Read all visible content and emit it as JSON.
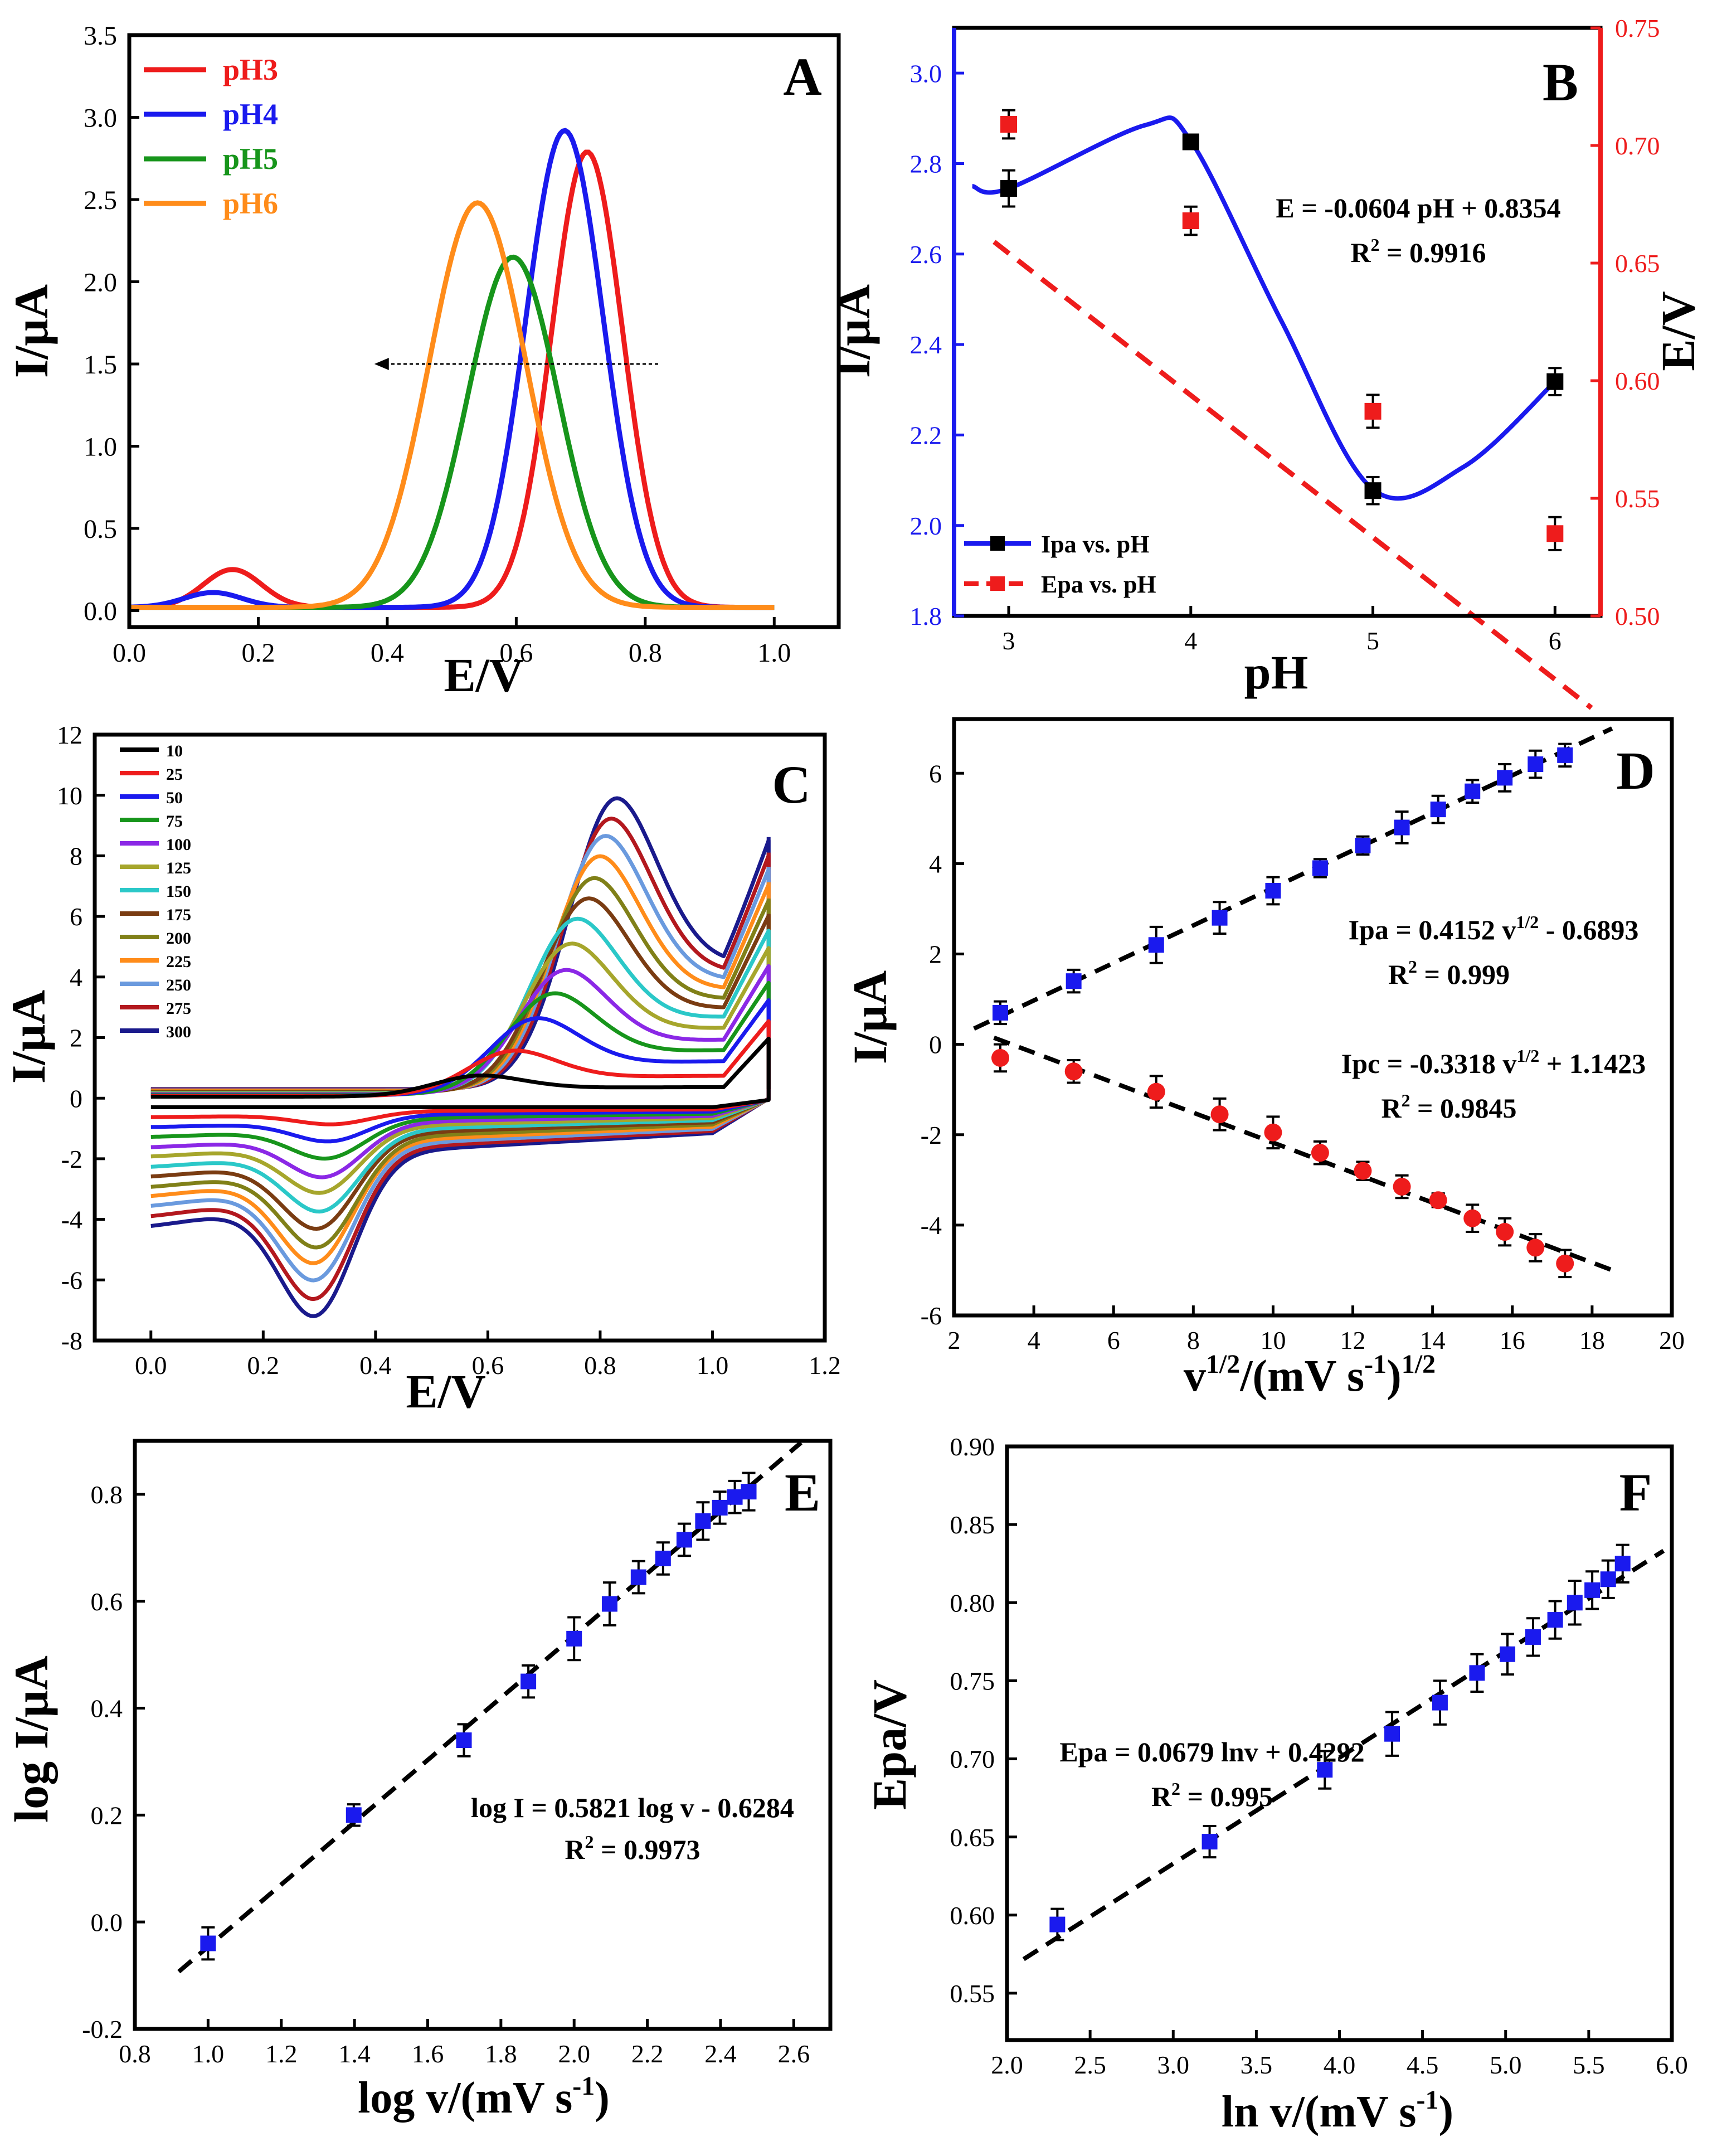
{
  "colors": {
    "red": "#ee1c1c",
    "blue": "#1a1aee",
    "green": "#17951b",
    "orange": "#ff8c1a",
    "black": "#000000",
    "cv": [
      "#000000",
      "#ee1c1c",
      "#1a1aee",
      "#17951b",
      "#8b28e6",
      "#a6a62c",
      "#2bc8c8",
      "#7a3c12",
      "#808018",
      "#ff8c1a",
      "#6a9ade",
      "#b3181e",
      "#1a1a8c"
    ]
  },
  "chart_data": [
    {
      "panel": "A",
      "type": "line",
      "xlabel": "E/V",
      "ylabel": "I/μA",
      "xlim": [
        0.0,
        1.1
      ],
      "ylim": [
        -0.1,
        3.5
      ],
      "xticks": [
        "0.0",
        "0.2",
        "0.4",
        "0.6",
        "0.8",
        "1.0"
      ],
      "yticks": [
        "0.0",
        "0.5",
        "1.0",
        "1.5",
        "2.0",
        "2.5",
        "3.0",
        "3.5"
      ],
      "legend": "top-left",
      "annotations": [
        "arrow pointing left at I≈1.5 µA, from E≈0.82 V to E≈0.38 V (peak shift with increasing pH)"
      ],
      "series": [
        {
          "name": "pH3",
          "peak_potential": 0.71,
          "peak_current": 2.77,
          "small_peak_potential": 0.16,
          "small_peak_current": 0.23
        },
        {
          "name": "pH4",
          "peak_potential": 0.675,
          "peak_current": 2.9,
          "small_peak_potential": 0.13,
          "small_peak_current": 0.09
        },
        {
          "name": "pH5",
          "peak_potential": 0.595,
          "peak_current": 2.13
        },
        {
          "name": "pH6",
          "peak_potential": 0.54,
          "peak_current": 2.46
        }
      ]
    },
    {
      "panel": "B",
      "type": "scatter",
      "xlabel": "pH",
      "ylabel_left": "I/μA",
      "ylabel_right": "E/V",
      "xlim": [
        2.7,
        6.25
      ],
      "ylim_left": [
        1.8,
        3.1
      ],
      "ylim_right": [
        0.5,
        0.75
      ],
      "xticks": [
        "3",
        "4",
        "5",
        "6"
      ],
      "yticks_left": [
        "1.8",
        "2.0",
        "2.2",
        "2.4",
        "2.6",
        "2.8",
        "3.0"
      ],
      "yticks_right": [
        "0.50",
        "0.55",
        "0.60",
        "0.65",
        "0.70",
        "0.75"
      ],
      "legend": "bottom-left",
      "equation": "E = -0.0604 pH + 0.8354",
      "r2_label": "R",
      "r2_value": " = 0.9916",
      "series": [
        {
          "name": "Ipa vs. pH",
          "x": [
            3,
            4,
            5,
            6
          ],
          "y": [
            2.745,
            2.848,
            2.077,
            2.318
          ],
          "error": [
            0.04,
            0.015,
            0.03,
            0.03
          ]
        },
        {
          "name": "Epa vs. pH",
          "x": [
            3,
            4,
            5,
            6
          ],
          "y": [
            0.709,
            0.668,
            0.587,
            0.535
          ],
          "error": [
            0.006,
            0.006,
            0.007,
            0.007
          ],
          "fit": {
            "slope": -0.0604,
            "intercept": 0.8354
          }
        }
      ]
    },
    {
      "panel": "C",
      "type": "line",
      "xlabel": "E/V",
      "ylabel": "I/μA",
      "xlim": [
        -0.1,
        1.2
      ],
      "ylim": [
        -8,
        12
      ],
      "xticks": [
        "0.0",
        "0.2",
        "0.4",
        "0.6",
        "0.8",
        "1.0",
        "1.2"
      ],
      "yticks": [
        "-8",
        "-6",
        "-4",
        "-2",
        "0",
        "2",
        "4",
        "6",
        "8",
        "10",
        "12"
      ],
      "legend": "top-left",
      "series_names": [
        "10",
        "25",
        "50",
        "75",
        "100",
        "125",
        "150",
        "175",
        "200",
        "225",
        "250",
        "275",
        "300"
      ],
      "anodic_peak_potential": [
        0.59,
        0.65,
        0.69,
        0.72,
        0.74,
        0.75,
        0.76,
        0.78,
        0.79,
        0.8,
        0.81,
        0.82,
        0.83
      ],
      "anodic_peak_current": [
        0.9,
        1.7,
        2.75,
        3.55,
        4.3,
        5.15,
        5.95,
        6.6,
        7.25,
        7.95,
        8.6,
        9.15,
        9.8
      ],
      "cathodic_peak_potential": [
        0.33,
        0.32,
        0.315,
        0.31,
        0.305,
        0.3,
        0.3,
        0.295,
        0.295,
        0.29,
        0.29,
        0.29,
        0.29
      ],
      "cathodic_peak_current": [
        -0.3,
        -0.8,
        -1.3,
        -1.8,
        -2.35,
        -2.8,
        -3.35,
        -3.85,
        -4.4,
        -4.85,
        -5.35,
        -5.9,
        -6.4
      ]
    },
    {
      "panel": "D",
      "type": "scatter",
      "xlabel": "v",
      "xlabel_super": "1/2",
      "xlabel_mid": "/(mV s",
      "xlabel_super2": "-1",
      "xlabel_end": ")",
      "xlabel_super3": "1/2",
      "ylabel": "I/μA",
      "xlim": [
        2,
        20
      ],
      "ylim": [
        -6,
        7.2
      ],
      "xticks": [
        "2",
        "4",
        "6",
        "8",
        "10",
        "12",
        "14",
        "16",
        "18",
        "20"
      ],
      "yticks": [
        "-6",
        "-4",
        "-2",
        "0",
        "2",
        "4",
        "6"
      ],
      "eq1_a": "Ipa = 0.4152 v",
      "eq1_sup": "1/2",
      "eq1_b": " - 0.6893",
      "r2_1": " = 0.999",
      "eq2_a": "Ipc = -0.3318 v",
      "eq2_sup": "1/2",
      "eq2_b": " + 1.1423",
      "r2_2": " = 0.9845",
      "r2_label": "R",
      "series": [
        {
          "name": "Ipa",
          "x": [
            3.16,
            5.0,
            7.07,
            8.66,
            10.0,
            11.18,
            12.25,
            13.23,
            14.14,
            15.0,
            15.81,
            16.58,
            17.32
          ],
          "y": [
            0.7,
            1.4,
            2.2,
            2.8,
            3.4,
            3.9,
            4.4,
            4.8,
            5.2,
            5.6,
            5.9,
            6.2,
            6.4
          ],
          "error": [
            0.25,
            0.25,
            0.4,
            0.35,
            0.3,
            0.2,
            0.2,
            0.35,
            0.3,
            0.25,
            0.3,
            0.3,
            0.25
          ],
          "fit": {
            "slope": 0.4152,
            "intercept": -0.6893,
            "xmin": 2.5,
            "xmax": 18.5
          }
        },
        {
          "name": "Ipc",
          "x": [
            3.16,
            5.0,
            7.07,
            8.66,
            10.0,
            11.18,
            12.25,
            13.23,
            14.14,
            15.0,
            15.81,
            16.58,
            17.32
          ],
          "y": [
            -0.3,
            -0.6,
            -1.05,
            -1.55,
            -1.95,
            -2.4,
            -2.8,
            -3.15,
            -3.45,
            -3.85,
            -4.15,
            -4.5,
            -4.85
          ],
          "error": [
            0.3,
            0.25,
            0.35,
            0.35,
            0.35,
            0.25,
            0.2,
            0.25,
            0.15,
            0.3,
            0.3,
            0.3,
            0.3
          ],
          "fit": {
            "slope": -0.3318,
            "intercept": 1.1423,
            "xmin": 3.0,
            "xmax": 18.5
          }
        }
      ]
    },
    {
      "panel": "E",
      "type": "scatter",
      "xlabel": "log v/(mV s",
      "xlabel_super": "-1",
      "xlabel_end": ")",
      "ylabel": "log I/μA",
      "xlim": [
        0.8,
        2.7
      ],
      "ylim": [
        -0.2,
        0.9
      ],
      "xticks": [
        "0.8",
        "1.0",
        "1.2",
        "1.4",
        "1.6",
        "1.8",
        "2.0",
        "2.2",
        "2.4",
        "2.6"
      ],
      "yticks": [
        "-0.2",
        "0.0",
        "0.2",
        "0.4",
        "0.6",
        "0.8"
      ],
      "eq": "log I = 0.5821 log v - 0.6284",
      "r2_label": "R",
      "r2": " = 0.9973",
      "series": [
        {
          "name": "log Ipa",
          "x": [
            1.0,
            1.398,
            1.699,
            1.875,
            2.0,
            2.097,
            2.176,
            2.243,
            2.301,
            2.352,
            2.398,
            2.439,
            2.477
          ],
          "y": [
            -0.04,
            0.2,
            0.34,
            0.45,
            0.53,
            0.595,
            0.645,
            0.68,
            0.715,
            0.75,
            0.775,
            0.795,
            0.805
          ],
          "error": [
            0.03,
            0.02,
            0.03,
            0.03,
            0.04,
            0.04,
            0.03,
            0.03,
            0.03,
            0.035,
            0.03,
            0.03,
            0.035
          ],
          "fit": {
            "slope": 0.5821,
            "intercept": -0.6284,
            "xmin": 0.92,
            "xmax": 2.62
          }
        }
      ]
    },
    {
      "panel": "F",
      "type": "scatter",
      "xlabel": "ln v/(mV s",
      "xlabel_super": "-1",
      "xlabel_end": ")",
      "ylabel": "Epa/V",
      "xlim": [
        2.0,
        6.0
      ],
      "ylim": [
        0.52,
        0.9
      ],
      "xticks": [
        "2.0",
        "2.5",
        "3.0",
        "3.5",
        "4.0",
        "4.5",
        "5.0",
        "5.5",
        "6.0"
      ],
      "yticks": [
        "0.55",
        "0.60",
        "0.65",
        "0.70",
        "0.75",
        "0.80",
        "0.85",
        "0.90"
      ],
      "eq": "Epa = 0.0679 lnv + 0.4292",
      "r2_label": "R",
      "r2": " = 0.995",
      "series": [
        {
          "name": "Epa",
          "x": [
            2.303,
            3.219,
            3.912,
            4.317,
            4.605,
            4.828,
            5.011,
            5.165,
            5.298,
            5.416,
            5.521,
            5.617,
            5.704
          ],
          "y": [
            0.594,
            0.647,
            0.693,
            0.716,
            0.736,
            0.755,
            0.767,
            0.778,
            0.789,
            0.8,
            0.808,
            0.815,
            0.825
          ],
          "error": [
            0.01,
            0.01,
            0.012,
            0.014,
            0.014,
            0.012,
            0.013,
            0.012,
            0.012,
            0.014,
            0.012,
            0.012,
            0.012
          ],
          "fit": {
            "slope": 0.0679,
            "intercept": 0.4292,
            "xmin": 2.1,
            "xmax": 5.95
          }
        }
      ]
    }
  ]
}
